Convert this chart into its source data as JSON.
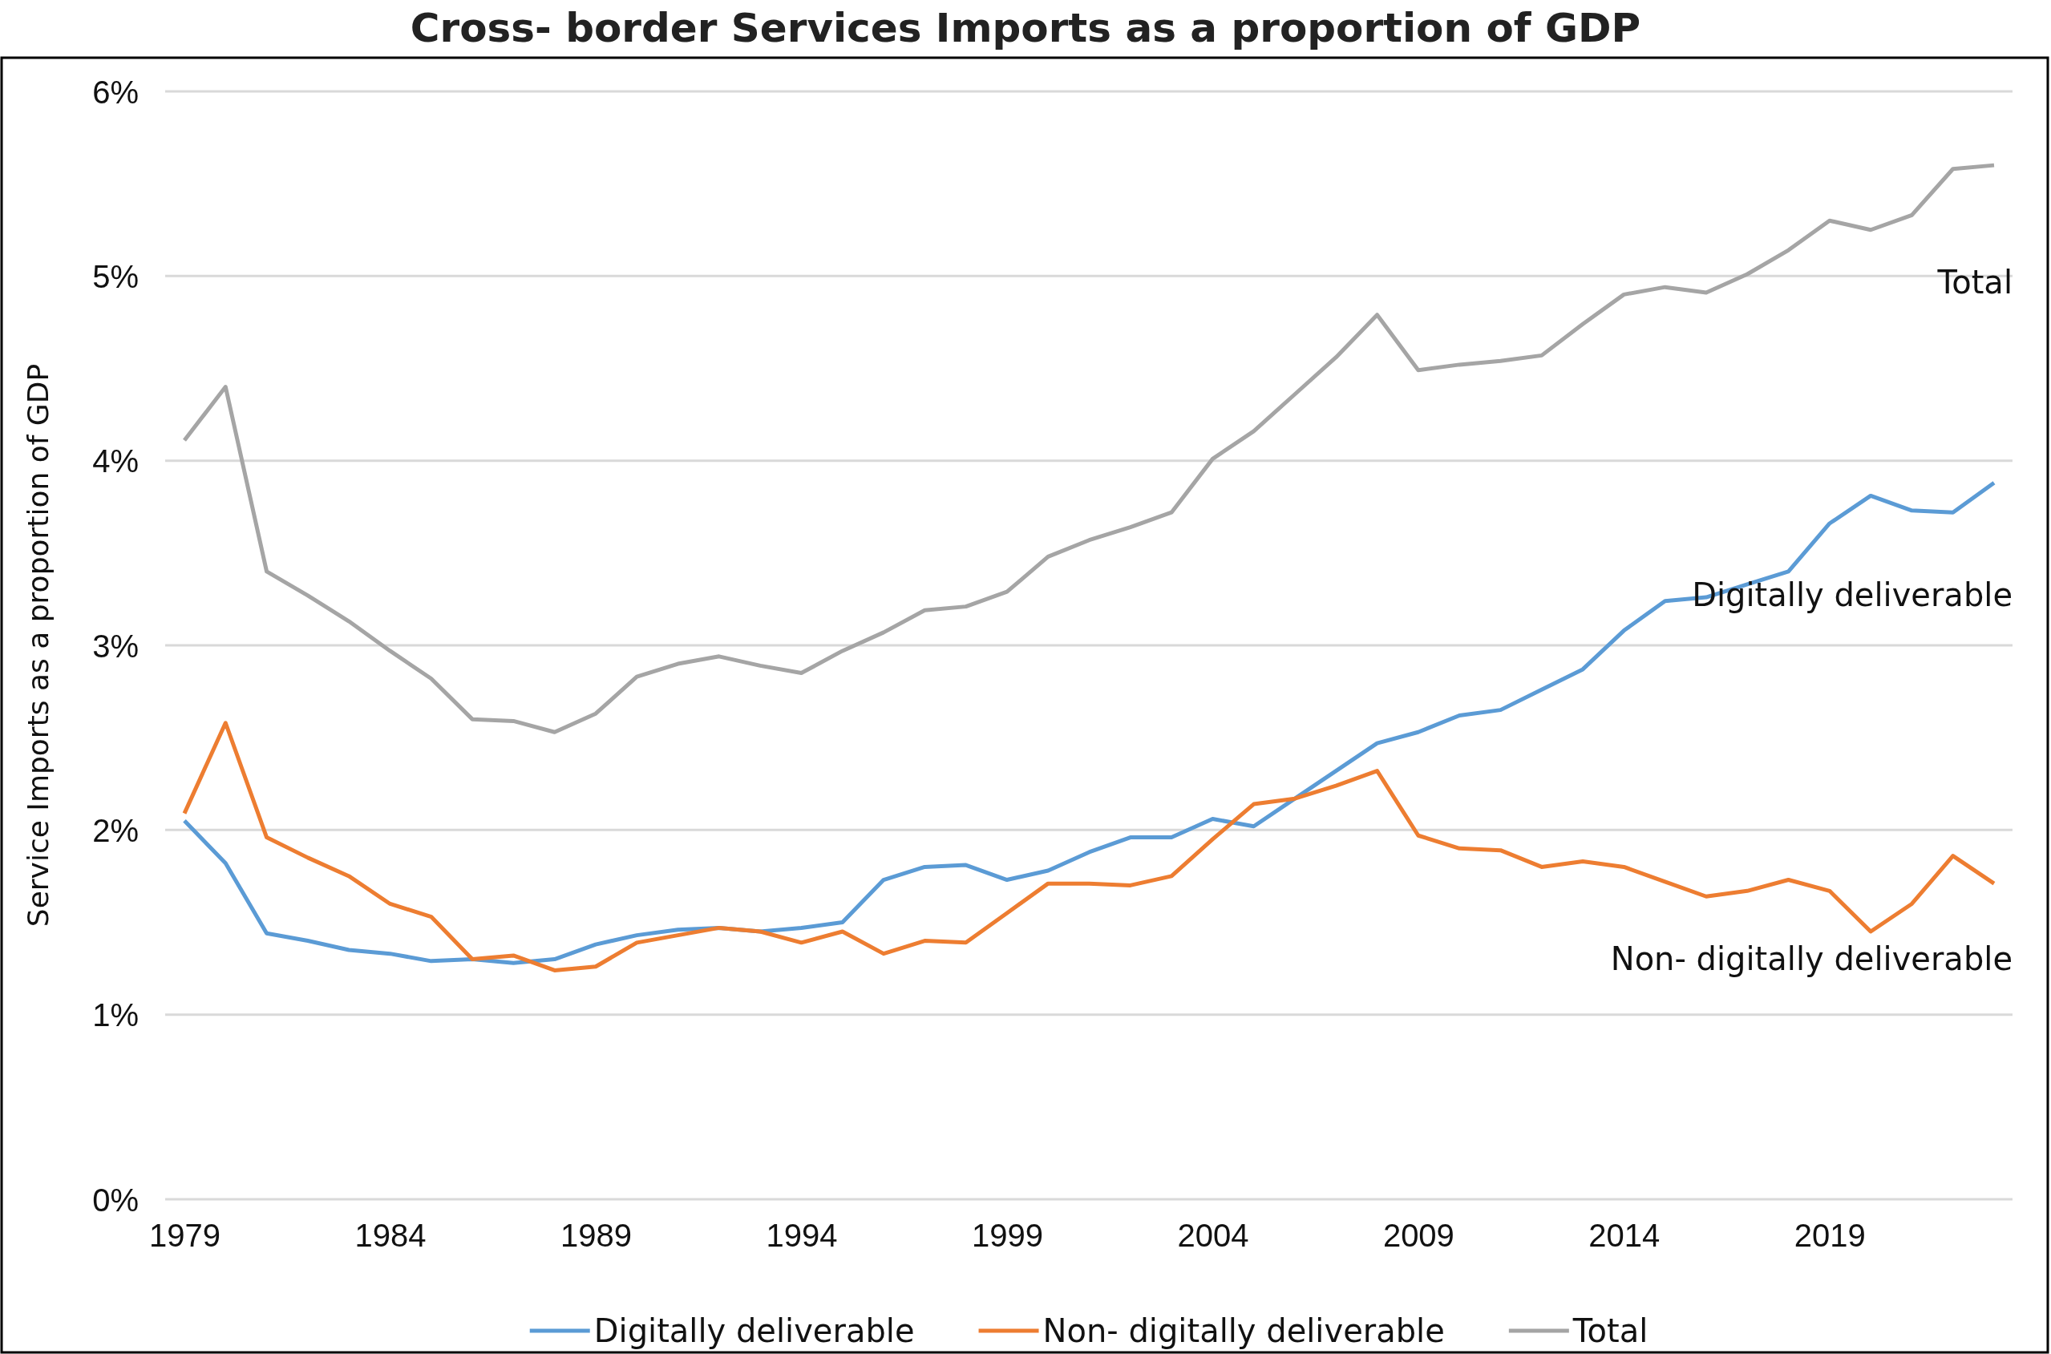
{
  "chart_data": {
    "type": "line",
    "title": "Cross- border Services Imports as a proportion of GDP",
    "ylabel": "Service Imports as a proportion of GDP",
    "categories": [
      "1979",
      null,
      null,
      null,
      null,
      "1984",
      null,
      null,
      null,
      null,
      "1989",
      null,
      null,
      null,
      null,
      "1994",
      null,
      null,
      null,
      null,
      "1999",
      null,
      null,
      null,
      null,
      "2004",
      null,
      null,
      null,
      null,
      "2009",
      null,
      null,
      null,
      null,
      "2014",
      null,
      null,
      null,
      null,
      "2019",
      null,
      null,
      null,
      null
    ],
    "series": [
      {
        "name": "Digitally deliverable",
        "color": "#5b9bd5",
        "values": [
          2.05,
          1.82,
          1.44,
          1.4,
          1.35,
          1.33,
          1.29,
          1.3,
          1.28,
          1.3,
          1.38,
          1.43,
          1.46,
          1.47,
          1.45,
          1.47,
          1.5,
          1.73,
          1.8,
          1.81,
          1.73,
          1.78,
          1.88,
          1.96,
          1.96,
          2.06,
          2.02,
          2.17,
          2.32,
          2.47,
          2.53,
          2.62,
          2.65,
          2.76,
          2.87,
          3.08,
          3.24,
          3.26,
          3.33,
          3.4,
          3.66,
          3.81,
          3.73,
          3.72,
          3.88
        ]
      },
      {
        "name": "Non- digitally deliverable",
        "color": "#ed7d31",
        "values": [
          2.09,
          2.58,
          1.96,
          1.85,
          1.75,
          1.6,
          1.53,
          1.3,
          1.32,
          1.24,
          1.26,
          1.39,
          1.43,
          1.47,
          1.45,
          1.39,
          1.45,
          1.33,
          1.4,
          1.39,
          1.55,
          1.71,
          1.71,
          1.7,
          1.75,
          1.95,
          2.14,
          2.17,
          2.24,
          2.32,
          1.97,
          1.9,
          1.89,
          1.8,
          1.83,
          1.8,
          1.72,
          1.64,
          1.67,
          1.73,
          1.67,
          1.45,
          1.6,
          1.86,
          1.71
        ]
      },
      {
        "name": "Total",
        "color": "#a5a5a5",
        "values": [
          4.11,
          4.4,
          3.4,
          3.27,
          3.13,
          2.97,
          2.82,
          2.6,
          2.59,
          2.53,
          2.63,
          2.83,
          2.9,
          2.94,
          2.89,
          2.85,
          2.97,
          3.07,
          3.19,
          3.21,
          3.29,
          3.48,
          3.57,
          3.64,
          3.72,
          4.01,
          4.16,
          4.36,
          4.56,
          4.79,
          4.49,
          4.52,
          4.54,
          4.57,
          4.74,
          4.9,
          4.94,
          4.91,
          5.01,
          5.14,
          5.3,
          5.25,
          5.33,
          5.58,
          5.6
        ]
      }
    ],
    "ylim": [
      0,
      6
    ],
    "yticks": [
      {
        "value": 0,
        "label": "0%"
      },
      {
        "value": 1,
        "label": "1%"
      },
      {
        "value": 2,
        "label": "2%"
      },
      {
        "value": 3,
        "label": "3%"
      },
      {
        "value": 4,
        "label": "4%"
      },
      {
        "value": 5,
        "label": "5%"
      },
      {
        "value": 6,
        "label": "6%"
      }
    ],
    "grid": "y",
    "legend": "bottom",
    "marker": "none",
    "line_style": "solid",
    "annotations": [
      "Total",
      "Digitally deliverable",
      "Non- digitally deliverable"
    ]
  }
}
